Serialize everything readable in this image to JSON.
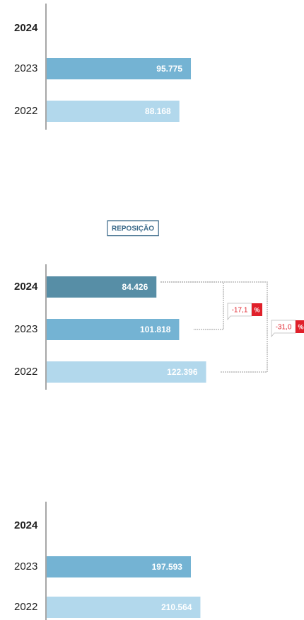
{
  "chart_data": [
    {
      "type": "bar",
      "orientation": "horizontal",
      "categories": [
        "2024",
        "2023",
        "2022"
      ],
      "values": [
        null,
        95775,
        88168
      ],
      "value_labels": [
        null,
        "95.775",
        "88.168"
      ],
      "colors": [
        "#578ea6",
        "#74b3d3",
        "#b2d8ec"
      ],
      "xlim": [
        0,
        156500
      ]
    },
    {
      "type": "bar",
      "orientation": "horizontal",
      "title": "REPOSIÇÃO",
      "categories": [
        "2024",
        "2023",
        "2022"
      ],
      "values": [
        84426,
        101818,
        122396
      ],
      "value_labels": [
        "84.426",
        "101.818",
        "122.396"
      ],
      "colors": [
        "#578ea6",
        "#74b3d3",
        "#b2d8ec"
      ],
      "xlim": [
        0,
        181000
      ],
      "annotations": [
        {
          "text": "-17,1",
          "unit": "%"
        },
        {
          "text": "-31,0",
          "unit": "%"
        }
      ]
    },
    {
      "type": "bar",
      "orientation": "horizontal",
      "categories": [
        "2024",
        "2023",
        "2022"
      ],
      "values": [
        null,
        197593,
        210564
      ],
      "value_labels": [
        null,
        "197.593",
        "210.564"
      ],
      "colors": [
        "#578ea6",
        "#74b3d3",
        "#b2d8ec"
      ],
      "xlim": [
        0,
        322900
      ]
    }
  ]
}
